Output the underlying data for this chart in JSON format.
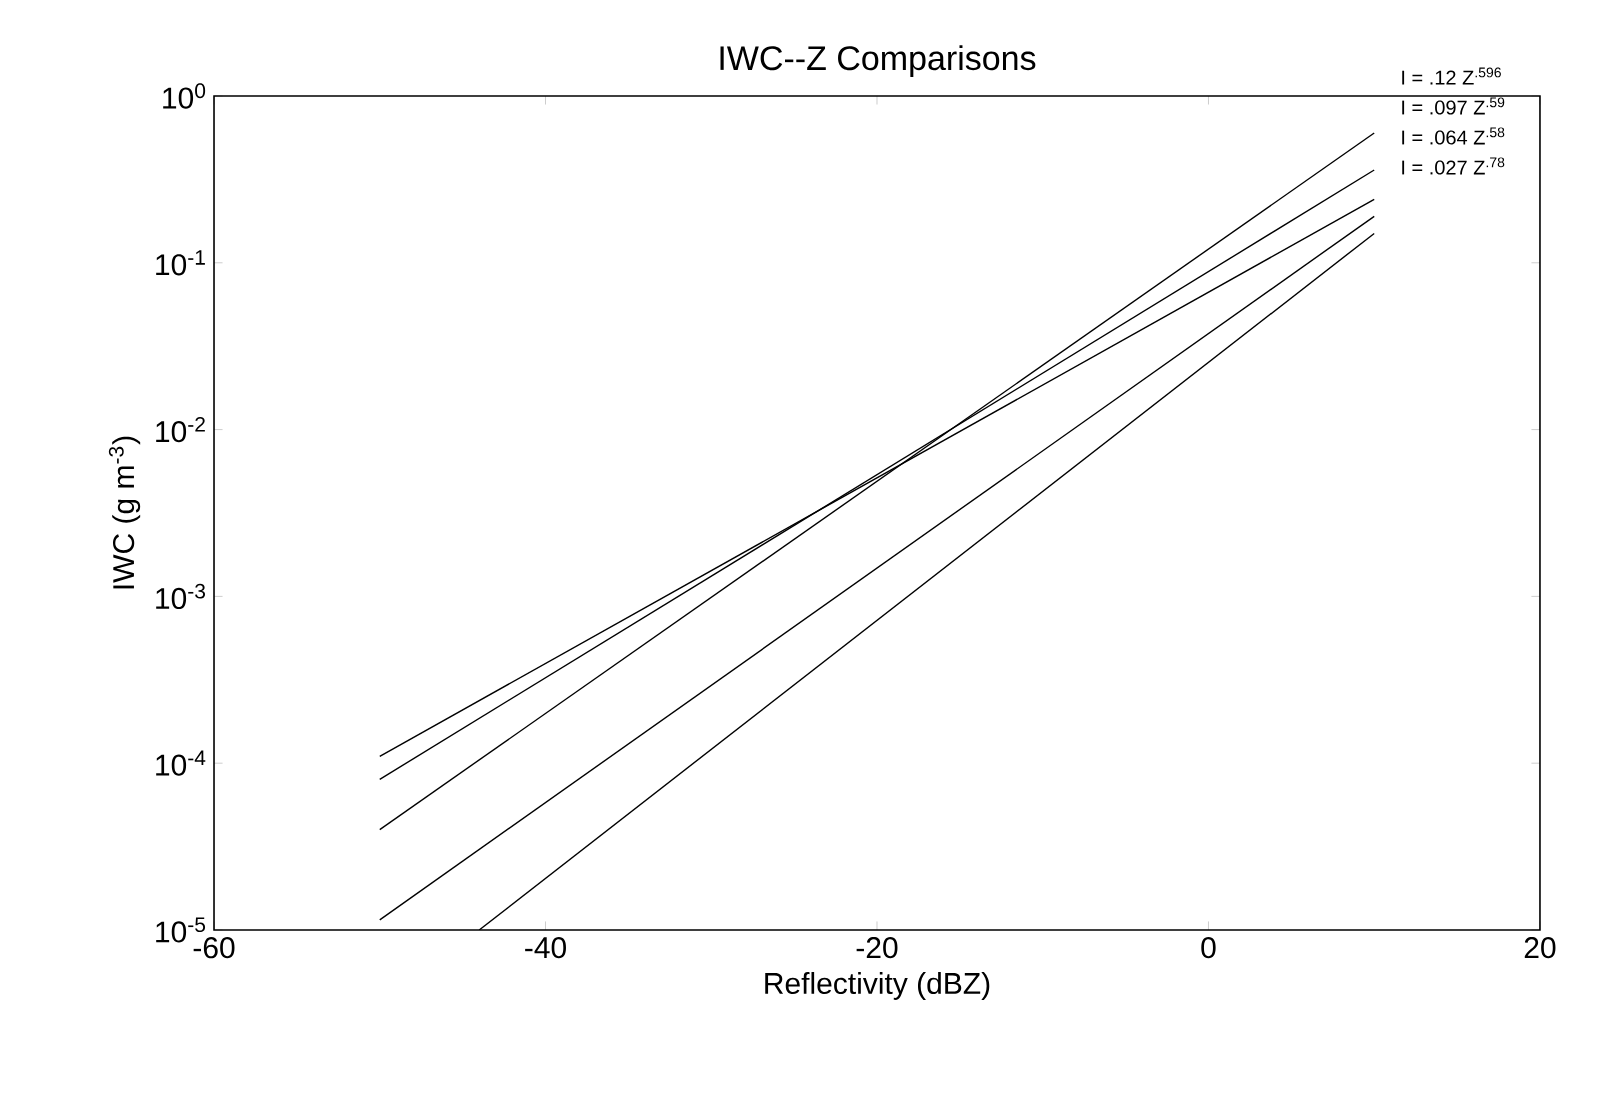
{
  "chart_data": {
    "type": "line",
    "title": "IWC--Z Comparisons",
    "xlabel": "Reflectivity (dBZ)",
    "ylabel": "IWC  (g m$^{-3}$)",
    "log": "y",
    "xlim": [
      -60,
      20
    ],
    "xticks": [
      -60,
      -40,
      -20,
      0,
      20
    ],
    "ylim": [
      1e-05,
      1
    ],
    "yticks": [
      {
        "value": 1,
        "label": "10$^{0}$"
      },
      {
        "value": 0.1,
        "label": "10$^{-1}$"
      },
      {
        "value": 0.01,
        "label": "10$^{-2}$"
      },
      {
        "value": 0.001,
        "label": "10$^{-3}$"
      },
      {
        "value": 0.0001,
        "label": "10$^{-4}$"
      },
      {
        "value": 1e-05,
        "label": "10$^{-5}$"
      }
    ],
    "annotations": [
      "I = .12 Z$^{.596}$",
      "I = .097 Z$^{.59}$",
      "I = .064 Z$^{.58}$",
      "I = .027 Z$^{.78}$"
    ],
    "series": [
      {
        "color": "#000000",
        "x": [
          -50,
          10
        ],
        "values": [
          0.00011,
          0.24
        ]
      },
      {
        "color": "#000000",
        "x": [
          -50,
          10
        ],
        "values": [
          8e-05,
          0.36
        ]
      },
      {
        "color": "#000000",
        "x": [
          -50,
          10
        ],
        "values": [
          4e-05,
          0.6
        ]
      },
      {
        "color": "#000000",
        "x": [
          -50,
          10
        ],
        "values": [
          1.15e-05,
          0.19
        ]
      },
      {
        "color": "#000000",
        "x": [
          -44,
          10
        ],
        "values": [
          1e-05,
          0.15
        ]
      }
    ]
  }
}
